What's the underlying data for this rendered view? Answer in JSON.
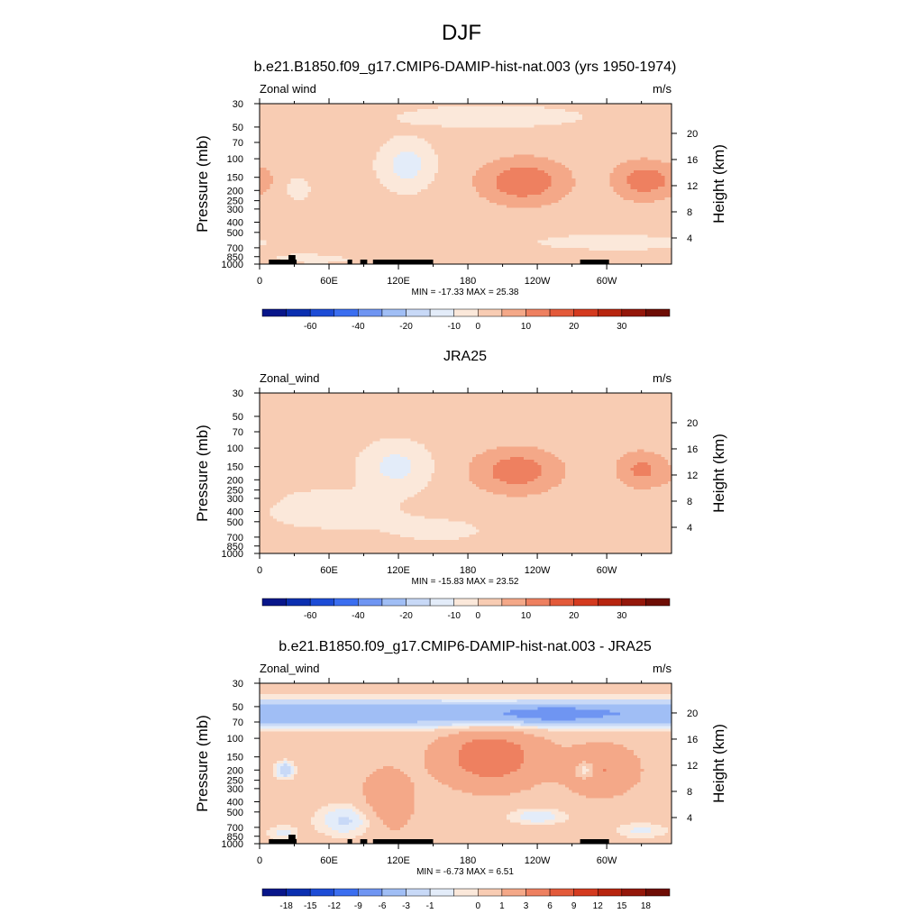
{
  "figure": {
    "title": "DJF"
  },
  "panels": [
    {
      "title": "b.e21.B1850.f09_g17.CMIP6-DAMIP-hist-nat.003 (yrs 1950-1974)",
      "left_label": "Zonal wind",
      "right_label": "m/s",
      "stats": "MIN = -17.33  MAX =  25.38",
      "has_topography": true
    },
    {
      "title": "JRA25",
      "left_label": "Zonal_wind",
      "right_label": "m/s",
      "stats": "MIN = -15.83  MAX =  23.52",
      "has_topography": false
    },
    {
      "title": "b.e21.B1850.f09_g17.CMIP6-DAMIP-hist-nat.003 - JRA25",
      "left_label": "Zonal_wind",
      "right_label": "m/s",
      "stats": "MIN =  -6.73  MAX =   6.51",
      "has_topography": true
    }
  ],
  "chart_data": [
    {
      "type": "heatmap",
      "title": "b.e21.B1850.f09_g17.CMIP6-DAMIP-hist-nat.003 (yrs 1950-1974)",
      "xlabel": "",
      "ylabel": "Pressure (mb)",
      "y2label": "Height (km)",
      "x_ticks": [
        "0",
        "60E",
        "120E",
        "180",
        "120W",
        "60W"
      ],
      "x_tick_values": [
        0,
        60,
        120,
        180,
        240,
        300
      ],
      "xlim": [
        0,
        356
      ],
      "y_ticks": [
        "30",
        "50",
        "70",
        "100",
        "150",
        "200",
        "250",
        "300",
        "400",
        "500",
        "700",
        "850",
        "1000"
      ],
      "y_tick_values": [
        30,
        50,
        70,
        100,
        150,
        200,
        250,
        300,
        400,
        500,
        700,
        850,
        1000
      ],
      "ylim": [
        1000,
        30
      ],
      "y2_ticks": [
        "20",
        "16",
        "12",
        "8",
        "4"
      ],
      "y_scale": "log",
      "colorbar_levels": [
        "-60",
        "-40",
        "-20",
        "-10",
        "0",
        "10",
        "20",
        "30"
      ],
      "colorbar_colors": [
        "#08168a",
        "#0b2fb0",
        "#1d4cd6",
        "#3b6ef0",
        "#6f95f2",
        "#a0bef5",
        "#c8d9f7",
        "#e3ecf9",
        "#fbe8da",
        "#f8ccb3",
        "#f4a888",
        "#ee8060",
        "#e35a3a",
        "#d43a1f",
        "#b7250f",
        "#94170a",
        "#6e0d05"
      ],
      "min": -17.33,
      "max": 25.38,
      "features": [
        {
          "kind": "jet",
          "lon": 228,
          "p": 160,
          "peak": 25.4
        },
        {
          "kind": "jet",
          "lon": 328,
          "p": 155,
          "peak": 22
        },
        {
          "kind": "easterly",
          "lon": 127,
          "p": 115,
          "peak": -17.3
        },
        {
          "kind": "low_positive",
          "lon": 130,
          "p": 650,
          "peak": 4
        }
      ]
    },
    {
      "type": "heatmap",
      "title": "JRA25",
      "xlabel": "",
      "ylabel": "Pressure (mb)",
      "y2label": "Height (km)",
      "x_ticks": [
        "0",
        "60E",
        "120E",
        "180",
        "120W",
        "60W"
      ],
      "x_tick_values": [
        0,
        60,
        120,
        180,
        240,
        300
      ],
      "xlim": [
        0,
        356
      ],
      "y_ticks": [
        "30",
        "50",
        "70",
        "100",
        "150",
        "200",
        "250",
        "300",
        "400",
        "500",
        "700",
        "850",
        "1000"
      ],
      "y_tick_values": [
        30,
        50,
        70,
        100,
        150,
        200,
        250,
        300,
        400,
        500,
        700,
        850,
        1000
      ],
      "ylim": [
        1000,
        30
      ],
      "y2_ticks": [
        "20",
        "16",
        "12",
        "8",
        "4"
      ],
      "y_scale": "log",
      "colorbar_levels": [
        "-60",
        "-40",
        "-20",
        "-10",
        "0",
        "10",
        "20",
        "30"
      ],
      "colorbar_colors": [
        "#08168a",
        "#0b2fb0",
        "#1d4cd6",
        "#3b6ef0",
        "#6f95f2",
        "#a0bef5",
        "#c8d9f7",
        "#e3ecf9",
        "#fbe8da",
        "#f8ccb3",
        "#f4a888",
        "#ee8060",
        "#e35a3a",
        "#d43a1f",
        "#b7250f",
        "#94170a",
        "#6e0d05"
      ],
      "min": -15.83,
      "max": 23.52,
      "features": [
        {
          "kind": "jet",
          "lon": 222,
          "p": 160,
          "peak": 23.5
        },
        {
          "kind": "jet",
          "lon": 330,
          "p": 160,
          "peak": 20
        },
        {
          "kind": "easterly",
          "lon": 118,
          "p": 150,
          "peak": -15.8
        },
        {
          "kind": "low_positive",
          "lon": 75,
          "p": 750,
          "peak": 3
        }
      ]
    },
    {
      "type": "heatmap",
      "title": "b.e21.B1850.f09_g17.CMIP6-DAMIP-hist-nat.003 - JRA25",
      "xlabel": "",
      "ylabel": "Pressure (mb)",
      "y2label": "Height (km)",
      "x_ticks": [
        "0",
        "60E",
        "120E",
        "180",
        "120W",
        "60W"
      ],
      "x_tick_values": [
        0,
        60,
        120,
        180,
        240,
        300
      ],
      "xlim": [
        0,
        356
      ],
      "y_ticks": [
        "30",
        "50",
        "70",
        "100",
        "150",
        "200",
        "250",
        "300",
        "400",
        "500",
        "700",
        "850",
        "1000"
      ],
      "y_tick_values": [
        30,
        50,
        70,
        100,
        150,
        200,
        250,
        300,
        400,
        500,
        700,
        850,
        1000
      ],
      "ylim": [
        1000,
        30
      ],
      "y2_ticks": [
        "20",
        "16",
        "12",
        "8",
        "4"
      ],
      "y_scale": "log",
      "colorbar_levels": [
        "-18",
        "-15",
        "-12",
        "-9",
        "-6",
        "-3",
        "-1",
        "0",
        "1",
        "3",
        "6",
        "9",
        "12",
        "15",
        "18"
      ],
      "colorbar_colors": [
        "#08168a",
        "#0b2fb0",
        "#1d4cd6",
        "#3b6ef0",
        "#6f95f2",
        "#a0bef5",
        "#c8d9f7",
        "#e3ecf9",
        "#fbe8da",
        "#f8ccb3",
        "#f4a888",
        "#ee8060",
        "#e35a3a",
        "#d43a1f",
        "#b7250f",
        "#94170a",
        "#6e0d05"
      ],
      "min": -6.73,
      "max": 6.51,
      "features": [
        {
          "kind": "stratospheric_easterly_band",
          "p": 60,
          "peak": -6.7
        },
        {
          "kind": "positive_max",
          "lon": 200,
          "p": 150,
          "peak": 6.5
        },
        {
          "kind": "positive",
          "lon": 290,
          "p": 200,
          "peak": 4
        },
        {
          "kind": "negative_spot",
          "lon": 22,
          "p": 200,
          "peak": -3
        },
        {
          "kind": "negative_spot",
          "lon": 282,
          "p": 200,
          "peak": -3
        }
      ]
    }
  ]
}
